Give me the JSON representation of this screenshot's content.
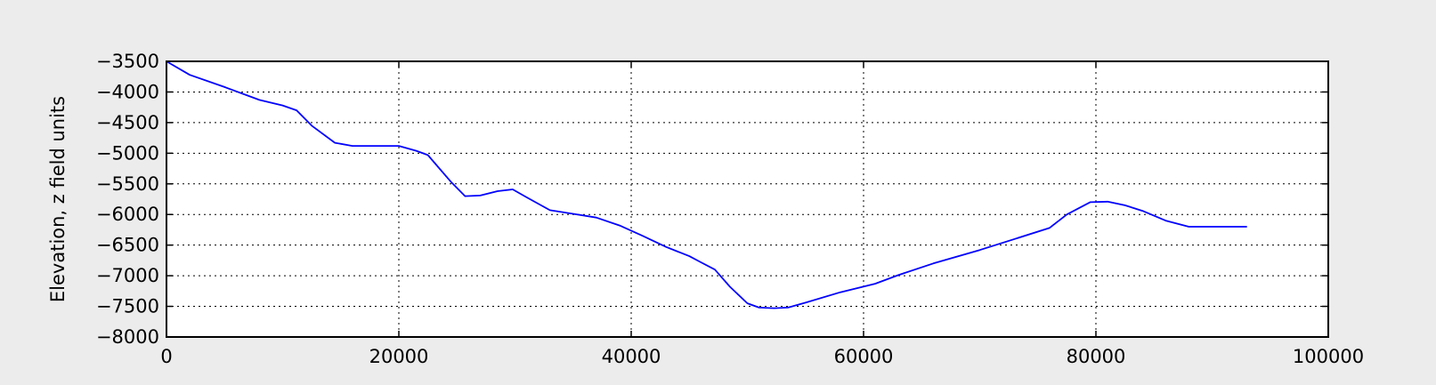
{
  "chart_data": {
    "type": "line",
    "title": "",
    "xlabel": "",
    "ylabel": "Elevation, z field units",
    "xlim": [
      0,
      100000
    ],
    "ylim": [
      -8000,
      -3500
    ],
    "xticks": [
      0,
      20000,
      40000,
      60000,
      80000,
      100000
    ],
    "xtick_labels": [
      "0",
      "20000",
      "40000",
      "60000",
      "80000",
      "100000"
    ],
    "yticks": [
      -3500,
      -4000,
      -4500,
      -5000,
      -5500,
      -6000,
      -6500,
      -7000,
      -7500,
      -8000
    ],
    "ytick_labels": [
      "−3500",
      "−4000",
      "−4500",
      "−5000",
      "−5500",
      "−6000",
      "−6500",
      "−7000",
      "−7500",
      "−8000"
    ],
    "grid": true,
    "background": "#ffffff",
    "figure_background": "#ececec",
    "series": [
      {
        "color": "#0000ff",
        "x": [
          0,
          2000,
          5000,
          8000,
          10000,
          11200,
          12500,
          14500,
          16000,
          18000,
          20000,
          21500,
          22500,
          23500,
          24500,
          25700,
          27000,
          28500,
          29800,
          31000,
          33000,
          35000,
          37000,
          39000,
          41000,
          43000,
          45000,
          46000,
          47200,
          48500,
          50000,
          51000,
          52300,
          53500,
          55000,
          58000,
          61000,
          63000,
          66000,
          70000,
          73000,
          76000,
          77500,
          79500,
          81000,
          82500,
          84000,
          86000,
          88000,
          90000,
          93000
        ],
        "y": [
          -3500,
          -3720,
          -3920,
          -4130,
          -4220,
          -4300,
          -4550,
          -4830,
          -4880,
          -4880,
          -4880,
          -4960,
          -5030,
          -5250,
          -5470,
          -5700,
          -5690,
          -5620,
          -5590,
          -5720,
          -5930,
          -5990,
          -6050,
          -6180,
          -6350,
          -6530,
          -6680,
          -6780,
          -6900,
          -7180,
          -7450,
          -7520,
          -7530,
          -7520,
          -7440,
          -7270,
          -7130,
          -6990,
          -6800,
          -6580,
          -6400,
          -6220,
          -6000,
          -5800,
          -5790,
          -5850,
          -5940,
          -6100,
          -6200,
          -6200,
          -6200
        ]
      }
    ]
  }
}
